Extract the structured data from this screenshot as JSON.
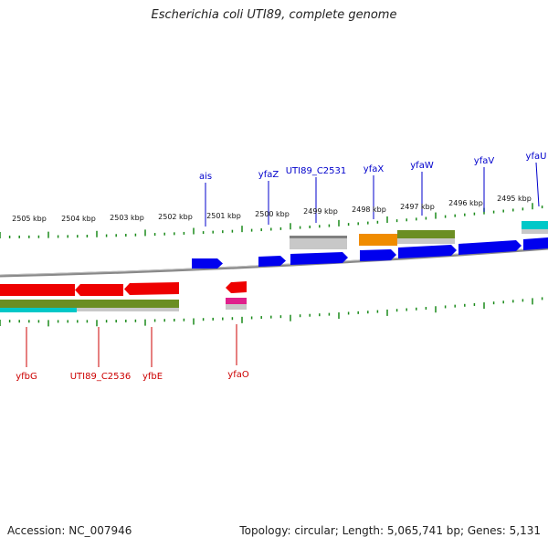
{
  "title": "Escherichia coli UTI89, complete genome",
  "footer": {
    "accession": "Accession: NC_007946",
    "topology": "Topology: circular; Length: 5,065,741 bp; Genes: 5,131"
  },
  "ticks": {
    "labels": [
      "2505 kbp",
      "2504 kbp",
      "2503 kbp",
      "2502 kbp",
      "2501 kbp",
      "2500 kbp",
      "2499 kbp",
      "2498 kbp",
      "2497 kbp",
      "2496 kbp",
      "2495 kbp"
    ],
    "color": "#1a8a1a"
  },
  "genes": {
    "forward": [
      "ais",
      "yfaZ",
      "UTI89_C2531",
      "yfaX",
      "yfaW",
      "yfaV",
      "yfaU"
    ],
    "reverse": [
      "yfbG",
      "UTI89_C2536",
      "yfbE",
      "yfaO"
    ]
  },
  "colors": {
    "forward_cds": "#0000ee",
    "reverse_cds": "#ee0000",
    "backbone": "#808080",
    "other_feature": "#c0c0c0",
    "orange_feature": "#f08c00",
    "olive_feature": "#6b8e23",
    "cyan_feature": "#00c8c8",
    "magenta_feature": "#e0208c",
    "forward_label": "#0000cc",
    "reverse_label": "#cc0000"
  }
}
